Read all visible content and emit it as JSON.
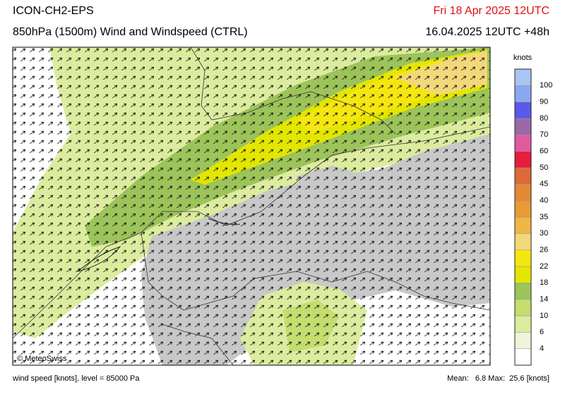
{
  "header": {
    "model": "ICON-CH2-EPS",
    "title": "850hPa (1500m) Wind and Windspeed (CTRL)",
    "valid": "Fri 18 Apr 2025 12UTC",
    "run": "16.04.2025 12UTC +48h"
  },
  "map": {
    "copyright": "© MeteoSwiss"
  },
  "legend": {
    "unit": "knots",
    "labels": [
      4,
      6,
      10,
      14,
      18,
      22,
      26,
      30,
      35,
      40,
      45,
      50,
      60,
      70,
      80,
      90,
      100
    ],
    "colors": [
      "#ffffff",
      "#eef5d8",
      "#dcec9e",
      "#c4dd6e",
      "#9cc45a",
      "#e3e600",
      "#f6e610",
      "#f3d87a",
      "#eeb646",
      "#e99a36",
      "#e28a36",
      "#dd6a36",
      "#e41e3c",
      "#e05aa0",
      "#9a6aa8",
      "#5a5ae8",
      "#8aa8f0",
      "#aac4f4"
    ]
  },
  "footer": {
    "left": "wind speed [knots], level = 85000 Pa",
    "right": "Mean:   6.8 Max:  25.6 [knots]"
  }
}
